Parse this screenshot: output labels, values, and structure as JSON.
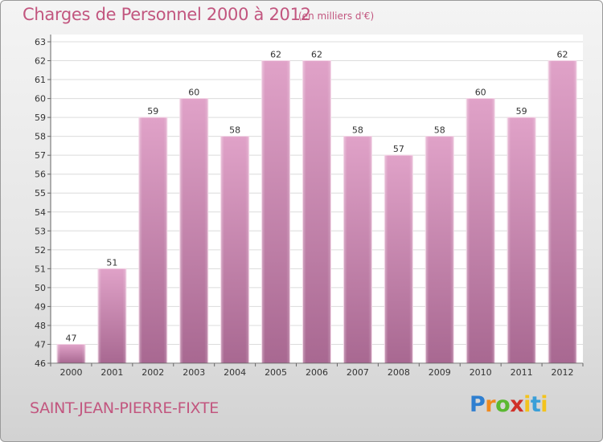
{
  "header": {
    "title": "Charges de Personnel 2000 à 2012",
    "unit_note": "(en milliers d'€)"
  },
  "footer": {
    "location": "SAINT-JEAN-PIERRE-FIXTE",
    "logo": {
      "p": "P",
      "r": "r",
      "o": "o",
      "x": "x",
      "i": "i",
      "t": "t",
      "i2": "i"
    }
  },
  "colors": {
    "title": "#c2567f",
    "bar_top": "#e0a2c8",
    "bar_bottom": "#a86891",
    "bar_edge": "#f2d2e4"
  },
  "chart_data": {
    "type": "bar",
    "title": "Charges de Personnel 2000 à 2012",
    "subtitle": "(en milliers d'€)",
    "categories": [
      "2000",
      "2001",
      "2002",
      "2003",
      "2004",
      "2005",
      "2006",
      "2007",
      "2008",
      "2009",
      "2010",
      "2011",
      "2012"
    ],
    "values": [
      47,
      51,
      59,
      60,
      58,
      62,
      62,
      58,
      57,
      58,
      60,
      59,
      62
    ],
    "ylim": [
      46,
      63
    ],
    "yticks": [
      46,
      47,
      48,
      49,
      50,
      51,
      52,
      53,
      54,
      55,
      56,
      57,
      58,
      59,
      60,
      61,
      62,
      63
    ],
    "grid": true,
    "data_labels": true
  }
}
